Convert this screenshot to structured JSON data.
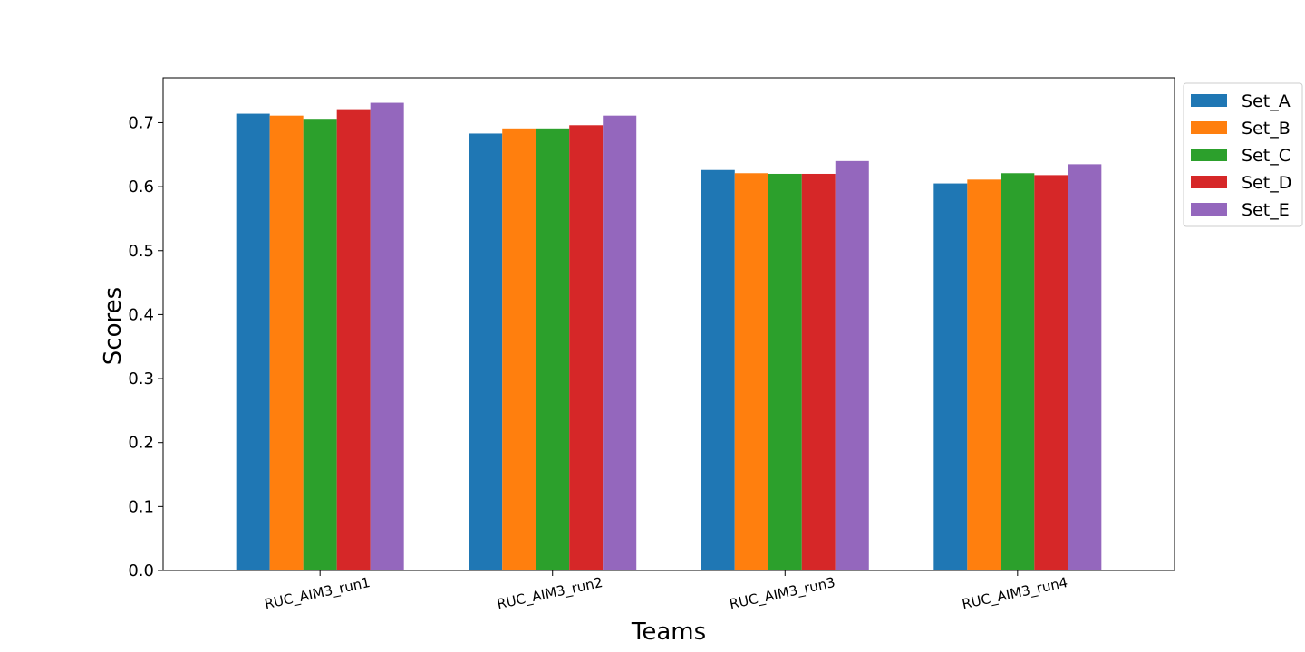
{
  "chart_data": {
    "type": "bar",
    "title": "",
    "xlabel": "Teams",
    "ylabel": "Scores",
    "ylim": [
      0,
      0.77
    ],
    "yticks": [
      "0.0",
      "0.1",
      "0.2",
      "0.3",
      "0.4",
      "0.5",
      "0.6",
      "0.7"
    ],
    "categories": [
      "RUC_AIM3_run1",
      "RUC_AIM3_run2",
      "RUC_AIM3_run3",
      "RUC_AIM3_run4"
    ],
    "series": [
      {
        "name": "Set_A",
        "color": "#1f77b4",
        "values": [
          0.714,
          0.683,
          0.626,
          0.605
        ]
      },
      {
        "name": "Set_B",
        "color": "#ff7f0e",
        "values": [
          0.711,
          0.691,
          0.621,
          0.611
        ]
      },
      {
        "name": "Set_C",
        "color": "#2ca02c",
        "values": [
          0.706,
          0.691,
          0.62,
          0.621
        ]
      },
      {
        "name": "Set_D",
        "color": "#d62728",
        "values": [
          0.721,
          0.696,
          0.62,
          0.618
        ]
      },
      {
        "name": "Set_E",
        "color": "#9467bd",
        "values": [
          0.731,
          0.711,
          0.64,
          0.635
        ]
      }
    ],
    "grid": false,
    "legend_position": "outside-top-right"
  }
}
